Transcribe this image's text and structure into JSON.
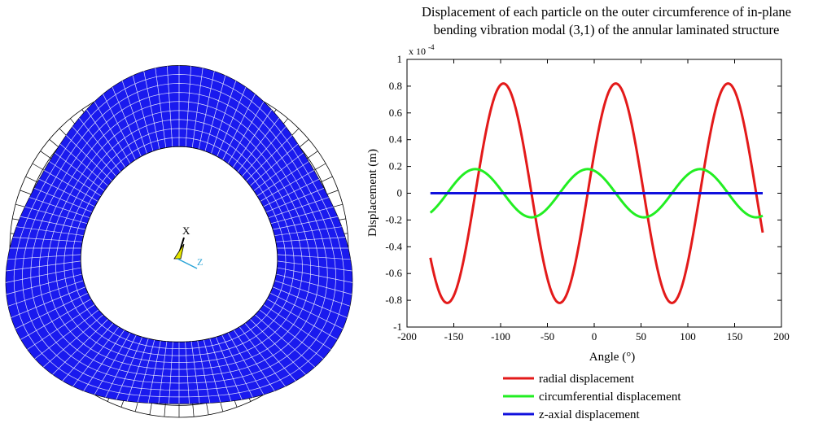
{
  "mesh": {
    "axis_x_label": "X",
    "axis_z_label": "Z",
    "colors": {
      "deformed_fill": "#1a1aee",
      "deformed_grid": "#ffffff",
      "undeformed": "#000000",
      "triad_z": "#29a3d6",
      "triad_marker": "#e6e600"
    }
  },
  "chart_data": {
    "type": "line",
    "title_line1": "Displacement of each particle on the outer circumference of in-plane",
    "title_line2": "bending vibration modal (3,1) of the annular laminated structure",
    "xlabel": "Angle (°)",
    "ylabel": "Displacement (m)",
    "y_exponent": "x 10",
    "y_exponent_power": "-4",
    "xlim": [
      -200,
      200
    ],
    "ylim": [
      -1,
      1
    ],
    "x_ticks": [
      -200,
      -150,
      -100,
      -50,
      0,
      50,
      100,
      150,
      200
    ],
    "x_tick_labels": [
      "-200",
      "-150",
      "-100",
      "-50",
      "0",
      "50",
      "100",
      "150",
      "200"
    ],
    "y_ticks": [
      -1,
      -0.8,
      -0.6,
      -0.4,
      -0.2,
      0,
      0.2,
      0.4,
      0.6,
      0.8,
      1
    ],
    "y_tick_labels": [
      "-1",
      "-0.8",
      "-0.6",
      "-0.4",
      "-0.2",
      "0",
      "0.2",
      "0.4",
      "0.6",
      "0.8",
      "1"
    ],
    "grid": false,
    "legend_position": "bottom",
    "x_range": [
      -175,
      180
    ],
    "series": [
      {
        "name": "radial displacement",
        "color": "#e31a1a",
        "amplitude": 0.82,
        "peak_angle_deg": 23,
        "period_deg": 120
      },
      {
        "name": "circumferential displacement",
        "color": "#22ee22",
        "amplitude": 0.18,
        "peak_angle_deg": -7,
        "period_deg": 120
      },
      {
        "name": "z-axial displacement",
        "color": "#1010dd",
        "amplitude": 0,
        "peak_angle_deg": 0,
        "period_deg": 120
      }
    ]
  }
}
